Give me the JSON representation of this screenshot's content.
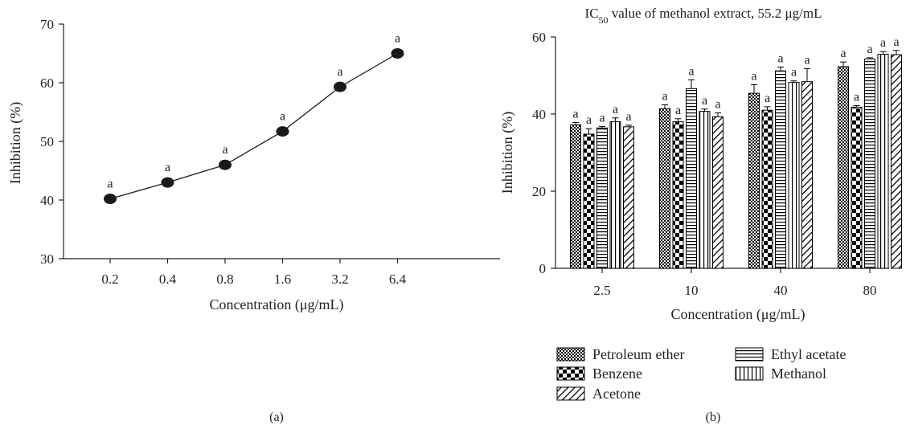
{
  "chart_data": [
    {
      "type": "line",
      "x": [
        "0.2",
        "0.4",
        "0.8",
        "1.6",
        "3.2",
        "6.4"
      ],
      "y": [
        40.2,
        43.0,
        46.0,
        51.7,
        59.3,
        65.0
      ],
      "point_labels": [
        "a",
        "a",
        "a",
        "a",
        "a",
        "a"
      ],
      "xlabel": "Concentration (μg/mL)",
      "ylabel": "Inhibition (%)",
      "ylim": [
        30,
        70
      ],
      "yticks": [
        30,
        40,
        50,
        60,
        70
      ],
      "panel_label": "(a)",
      "grid": false,
      "colors": {
        "line": "#1a1a1a",
        "marker": "#1a1a1a"
      }
    },
    {
      "type": "bar",
      "title_prefix": "IC",
      "title_sub": "50",
      "title_suffix": " value of methanol extract, 55.2 μg/mL",
      "categories": [
        "2.5",
        "10",
        "40",
        "80"
      ],
      "series": [
        {
          "name": "Petroleum ether",
          "pattern": "crosshatch",
          "values": [
            37.2,
            41.4,
            45.4,
            52.3
          ],
          "errors": [
            0.6,
            1.0,
            2.2,
            1.2
          ]
        },
        {
          "name": "Benzene",
          "pattern": "checker",
          "values": [
            34.8,
            38.0,
            41.0,
            41.8
          ],
          "errors": [
            1.4,
            0.8,
            0.9,
            0.4
          ]
        },
        {
          "name": "Ethyl acetate",
          "pattern": "horizontal",
          "values": [
            36.4,
            46.6,
            51.2,
            54.3
          ],
          "errors": [
            0.4,
            2.3,
            1.0,
            0.3
          ]
        },
        {
          "name": "Methanol",
          "pattern": "vertical",
          "values": [
            38.0,
            40.7,
            48.2,
            55.5
          ],
          "errors": [
            1.0,
            0.6,
            0.4,
            0.7
          ]
        },
        {
          "name": "Acetone",
          "pattern": "diagonal",
          "values": [
            36.7,
            39.3,
            48.4,
            55.4
          ],
          "errors": [
            0.4,
            1.0,
            3.4,
            1.1
          ]
        }
      ],
      "bar_labels": [
        "a",
        "a",
        "a",
        "a",
        "a"
      ],
      "xlabel": "Concentration (μg/mL)",
      "ylabel": "Inhibition (%)",
      "ylim": [
        0,
        60
      ],
      "yticks": [
        0,
        20,
        40,
        60
      ],
      "legend": {
        "placement": "bottom",
        "columns": [
          [
            "Petroleum ether",
            "Benzene",
            "Acetone"
          ],
          [
            "Ethyl acetate",
            "Methanol"
          ]
        ]
      },
      "panel_label": "(b)",
      "grid": false
    }
  ]
}
